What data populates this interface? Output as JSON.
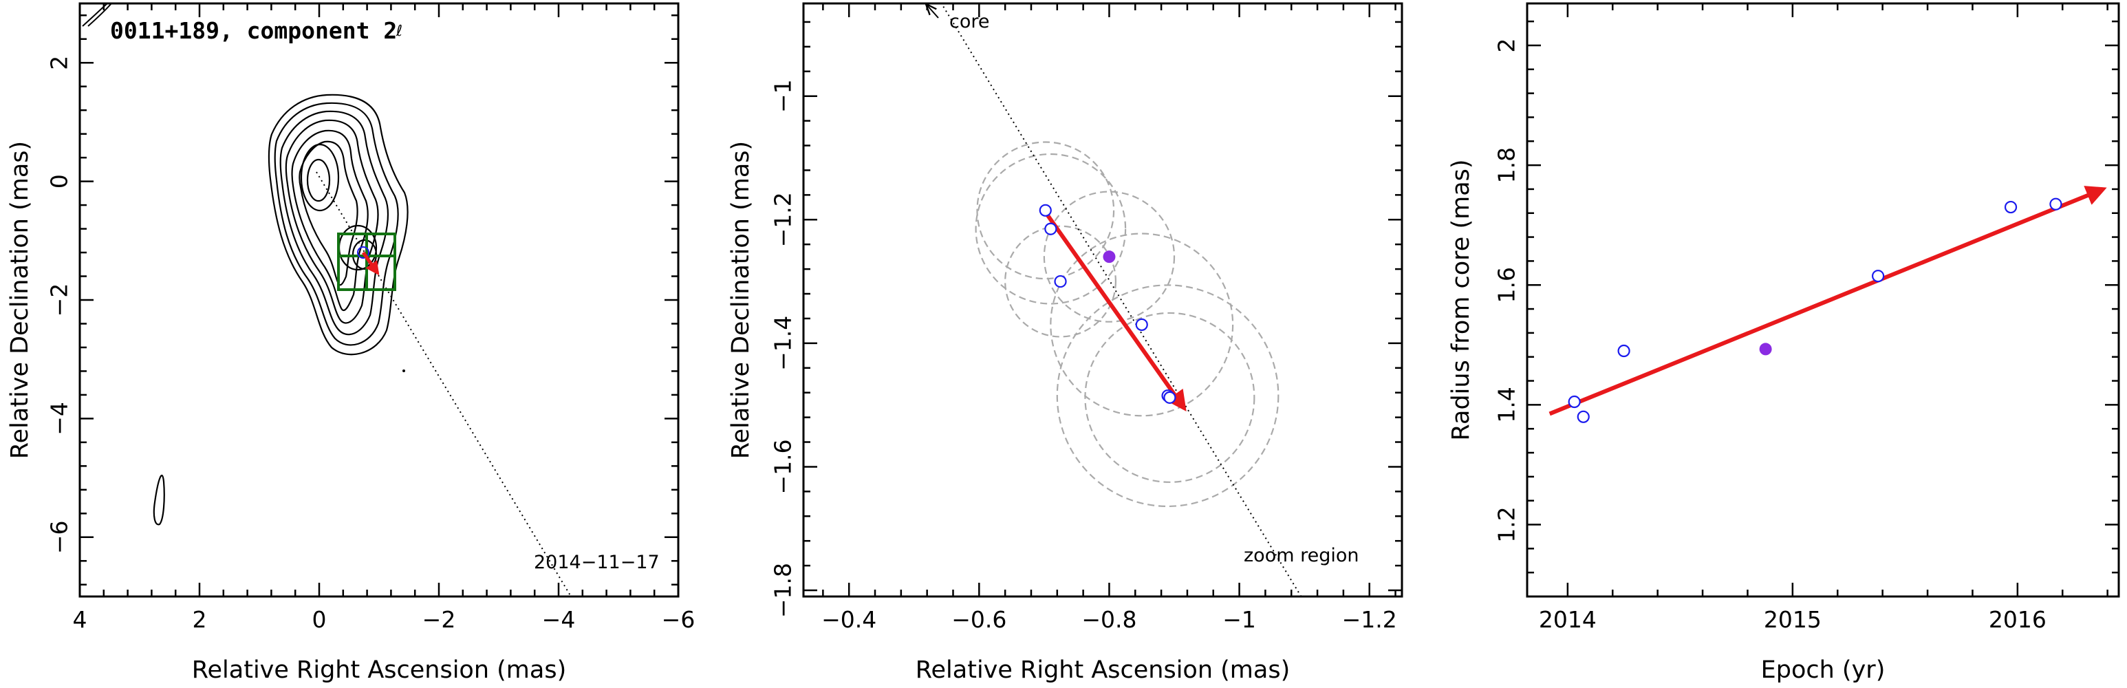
{
  "chart_data": [
    {
      "type": "contour",
      "title": "0011+189, component 2",
      "xlabel": "Relative Right Ascension (mas)",
      "ylabel": "Relative Declination (mas)",
      "xlim": [
        4,
        -6
      ],
      "ylim": [
        -7,
        3
      ],
      "xticks": [
        4,
        2,
        0,
        -2,
        -4,
        -6
      ],
      "yticks": [
        2,
        0,
        -2,
        -4,
        -6
      ],
      "xtick_labels": [
        "4",
        "2",
        "0",
        "−2",
        "−4",
        "−6"
      ],
      "ytick_labels": [
        "2",
        "0",
        "−2",
        "−4",
        "−6"
      ],
      "annotations": [
        "2014−11−17"
      ],
      "colors": {
        "contour": "#000000",
        "zoom_box": "#137313",
        "arrow": "#e8191c",
        "path": "#000000"
      },
      "zoom_box": {
        "x": [
          0.3,
          -1.3
        ],
        "y": [
          -0.85,
          -1.8
        ]
      },
      "core_direction_line": {
        "x": [
          0.1,
          -4.3
        ],
        "y": [
          0.1,
          -7.0
        ]
      },
      "component_arrow": {
        "x": [
          0.7,
          -0.9
        ],
        "y": [
          -1.2,
          -1.5
        ]
      },
      "features": {
        "core_peak": {
          "x": 0.05,
          "y": -0.15
        },
        "detached_contour": {
          "x": 2.8,
          "y": -5.3
        }
      }
    },
    {
      "type": "scatter",
      "title": "",
      "xlabel": "Relative Right Ascension (mas)",
      "ylabel": "Relative Declination (mas)",
      "xlim": [
        -0.33,
        -1.25
      ],
      "ylim": [
        -1.81,
        -0.85
      ],
      "xticks": [
        -0.4,
        -0.6,
        -0.8,
        -1.0,
        -1.2
      ],
      "yticks": [
        -1.0,
        -1.2,
        -1.4,
        -1.6,
        -1.8
      ],
      "xtick_labels": [
        "−0.4",
        "−0.6",
        "−0.8",
        "−1",
        "−1.2"
      ],
      "ytick_labels": [
        "−1",
        "−1.2",
        "−1.4",
        "−1.6",
        "−1.8"
      ],
      "annotations": [
        "core",
        "zoom region"
      ],
      "colors": {
        "points": "#1a1aee",
        "mean_point": "#8a2be2",
        "arrow": "#e8191c",
        "circles": "#aaaaaa",
        "core_direction": "#000000"
      },
      "points": [
        {
          "x": -0.702,
          "y": -1.185
        },
        {
          "x": -0.71,
          "y": -1.215
        },
        {
          "x": -0.725,
          "y": -1.3
        },
        {
          "x": -0.85,
          "y": -1.37
        },
        {
          "x": -0.89,
          "y": -1.485
        },
        {
          "x": -0.893,
          "y": -1.488
        }
      ],
      "mean_point": {
        "x": -0.8,
        "y": -1.26
      },
      "beam_circles": [
        {
          "x": -0.702,
          "y": -1.185,
          "r": 0.105
        },
        {
          "x": -0.71,
          "y": -1.215,
          "r": 0.115
        },
        {
          "x": -0.725,
          "y": -1.3,
          "r": 0.085
        },
        {
          "x": -0.85,
          "y": -1.37,
          "r": 0.14
        },
        {
          "x": -0.89,
          "y": -1.485,
          "r": 0.17
        },
        {
          "x": -0.893,
          "y": -1.488,
          "r": 0.13
        },
        {
          "x": -0.8,
          "y": -1.26,
          "r": 0.1
        }
      ],
      "direction_arrow": {
        "x": [
          -0.7,
          -0.915
        ],
        "y": [
          -1.185,
          -1.505
        ]
      },
      "core_direction_line": {
        "x": [
          -0.545,
          -1.095
        ],
        "y": [
          -0.855,
          -1.81
        ]
      }
    },
    {
      "type": "scatter",
      "title": "",
      "xlabel": "Epoch (yr)",
      "ylabel": "Radius from core (mas)",
      "xlim": [
        2013.82,
        2016.45
      ],
      "ylim": [
        1.08,
        2.07
      ],
      "xticks": [
        2014,
        2015,
        2016
      ],
      "yticks": [
        1.2,
        1.4,
        1.6,
        1.8,
        2.0
      ],
      "xtick_labels": [
        "2014",
        "2015",
        "2016"
      ],
      "ytick_labels": [
        "1.2",
        "1.4",
        "1.6",
        "1.8",
        "2"
      ],
      "colors": {
        "points": "#1a1aee",
        "mean_point": "#8a2be2",
        "fit": "#e8191c"
      },
      "points": [
        {
          "x": 2014.03,
          "y": 1.405
        },
        {
          "x": 2014.07,
          "y": 1.38
        },
        {
          "x": 2014.25,
          "y": 1.49
        },
        {
          "x": 2015.38,
          "y": 1.615
        },
        {
          "x": 2015.97,
          "y": 1.73
        },
        {
          "x": 2016.17,
          "y": 1.735
        }
      ],
      "mean_point": {
        "x": 2014.88,
        "y": 1.493
      },
      "fit_line": {
        "x": [
          2013.92,
          2016.38
        ],
        "y": [
          1.385,
          1.76
        ]
      }
    }
  ]
}
